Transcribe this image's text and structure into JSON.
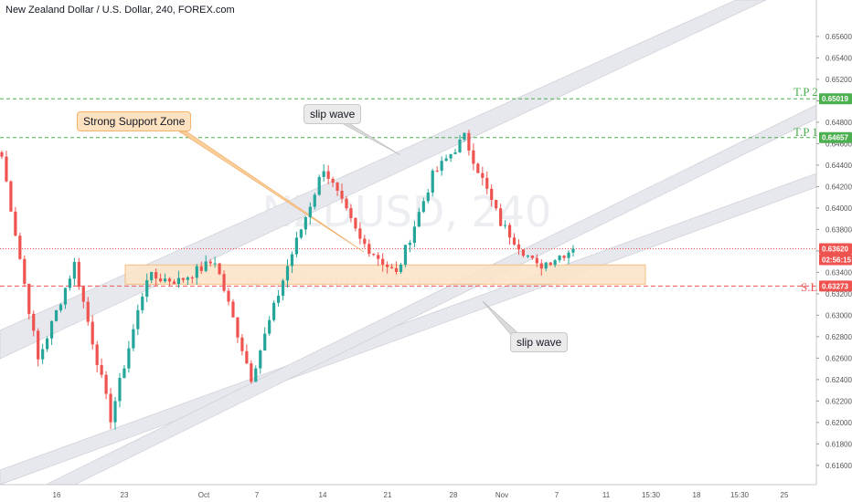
{
  "header": {
    "title": "New Zealand Dollar / U.S. Dollar, 240, FOREX.com"
  },
  "watermark": {
    "symbol": "NZDUSD, 240",
    "name": "New Zealand Dollar / U.S. Dollar"
  },
  "annotations": {
    "strong_support": "Strong Support Zone",
    "slip_wave_top": "slip wave",
    "slip_wave_bottom": "slip wave"
  },
  "levels": {
    "tp2": {
      "label": "T.P 2",
      "price": 0.65019,
      "price_text": "0.65019",
      "color": "#4caf50"
    },
    "tp1": {
      "label": "T.P 1",
      "price": 0.64657,
      "price_text": "0.64657",
      "color": "#4caf50"
    },
    "current": {
      "price": 0.6362,
      "price_text": "0.63620",
      "countdown": "02:56:15",
      "color": "#ef5350"
    },
    "sl": {
      "label": "S.L",
      "price": 0.63273,
      "price_text": "0.63273",
      "color": "#ef5350"
    }
  },
  "colors": {
    "up": "#26a69a",
    "down": "#ef5350",
    "channel": "#e7e8ee",
    "zone": "#fbe3c6",
    "zone_border": "#f5b26b"
  },
  "chart_data": {
    "type": "candlestick",
    "title": "New Zealand Dollar / U.S. Dollar, 240, FOREX.com",
    "ylim": [
      0.6142,
      0.6594
    ],
    "y_ticks": [
      "0.65600",
      "0.65400",
      "0.65200",
      "0.65000",
      "0.64800",
      "0.64600",
      "0.64400",
      "0.64200",
      "0.64000",
      "0.63800",
      "0.63600",
      "0.63400",
      "0.63200",
      "0.63000",
      "0.62800",
      "0.62600",
      "0.62400",
      "0.62200",
      "0.62000",
      "0.61800",
      "0.61600"
    ],
    "x_ticks": [
      "16",
      "23",
      "Oct",
      "7",
      "14",
      "21",
      "28",
      "Nov",
      "7",
      "11",
      "15:30",
      "18",
      "15:30",
      "25"
    ],
    "support_zone": [
      0.6329,
      0.6347
    ],
    "key_points": [
      {
        "label": "Sep 12",
        "price": 0.6448
      },
      {
        "label": "Sep 24",
        "price": 0.6258
      },
      {
        "label": "Sep 26",
        "price": 0.6348
      },
      {
        "label": "Sep 30",
        "price": 0.6204
      },
      {
        "label": "Oct 4",
        "price": 0.6336
      },
      {
        "label": "Oct 10",
        "price": 0.6332
      },
      {
        "label": "Oct 13",
        "price": 0.6351
      },
      {
        "label": "Oct 17",
        "price": 0.6242
      },
      {
        "label": "Oct 19",
        "price": 0.6346
      },
      {
        "label": "Oct 21",
        "price": 0.6438
      },
      {
        "label": "Oct 25",
        "price": 0.637
      },
      {
        "label": "Oct 28",
        "price": 0.6338
      },
      {
        "label": "Oct 31",
        "price": 0.643
      },
      {
        "label": "Nov 3",
        "price": 0.6466
      },
      {
        "label": "Nov 5",
        "price": 0.6386
      },
      {
        "label": "Nov 7",
        "price": 0.6345
      },
      {
        "label": "Nov 8",
        "price": 0.6362
      }
    ]
  }
}
